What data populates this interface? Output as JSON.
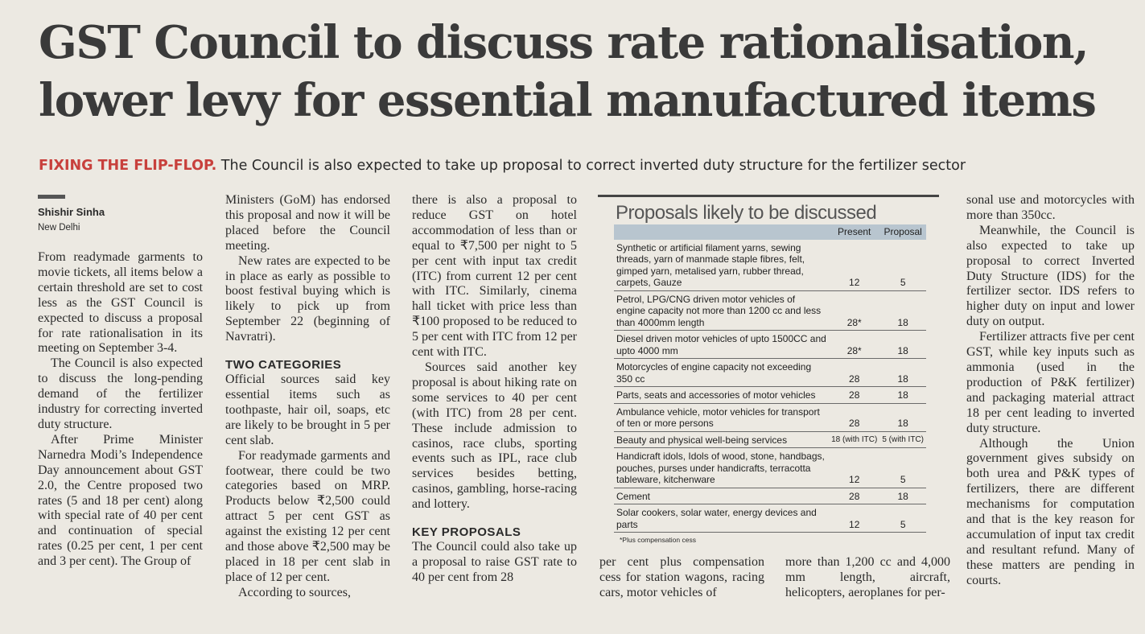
{
  "headline": {
    "line1": "GST Council to discuss rate rationalisation,",
    "line2": "lower levy for essential manufactured items"
  },
  "strap": {
    "kicker": "FIXING THE FLIP-FLOP.",
    "text": " The Council is also expected to take up proposal to correct inverted duty structure for the fertilizer sector"
  },
  "byline": {
    "name": "Shishir Sinha",
    "place": "New Delhi"
  },
  "col1": [
    "From readymade garments to movie tickets, all items below a certain threshold are set to cost less as the GST Council is expected to discuss a proposal for rate rationalisation in its meeting on September 3-4.",
    "The Council is also expected to discuss the long-pending demand of the fertilizer industry for correcting inverted duty structure.",
    "After Prime Minister Narnedra Modi’s Independence Day announcement about GST 2.0, the Centre proposed two rates (5 and 18 per cent) along with special rate of 40 per cent and continuation of special rates (0.25 per cent, 1 per cent and 3 per cent). The Group of"
  ],
  "col2": {
    "p1": "Ministers (GoM) has endorsed this proposal and now it will be placed before the Council meeting.",
    "p2": "New rates are expected to be in place as early as possible to boost festival buying which is likely to pick up from September 22 (beginning of Navratri).",
    "heading": "TWO CATEGORIES",
    "p3": "Official sources said key essential items such as toothpaste, hair oil, soaps, etc are likely to be brought in 5 per cent slab.",
    "p4": "For readymade garments and footwear, there could be two categories based on MRP. Products below ₹2,500 could attract 5 per cent GST as against the existing 12 per cent and those above ₹2,500 may be placed in 18 per cent slab in place of 12 per cent.",
    "p5": "According to sources,"
  },
  "col3": {
    "p1": "there is also a proposal to reduce GST on hotel accommodation of less than or equal to ₹7,500 per night to 5 per cent with input tax credit (ITC) from current 12 per cent with ITC. Similarly, cinema hall ticket with price less than ₹100 proposed to be reduced to 5 per cent with ITC from 12 per cent with ITC.",
    "p2": "Sources said another key proposal is about hiking rate on some services to 40 per cent (with ITC) from 28 per cent. These include admission to casinos, race clubs, sporting events such as IPL, race club services besides betting, casinos, gambling, horse-racing and lottery.",
    "heading": "KEY PROPOSALS",
    "p3": "The Council could also take up a proposal to raise GST rate to 40 per cent from 28"
  },
  "table": {
    "title": "Proposals likely to be discussed",
    "col_present": "Present",
    "col_proposal": "Proposal",
    "rows": [
      {
        "item": "Synthetic or artificial filament yarns, sewing threads, yarn of manmade staple fibres, felt, gimped yarn, metalised yarn, rubber thread, carpets, Gauze",
        "present": "12",
        "proposal": "5"
      },
      {
        "item": "Petrol, LPG/CNG driven motor vehicles of engine capacity not more than 1200 cc and less than 4000mm length",
        "present": "28*",
        "proposal": "18"
      },
      {
        "item": "Diesel driven motor vehicles of upto 1500CC and upto 4000 mm",
        "present": "28*",
        "proposal": "18"
      },
      {
        "item": "Motorcycles of engine capacity not exceeding 350 cc",
        "present": "28",
        "proposal": "18"
      },
      {
        "item": "Parts, seats and accessories of motor vehicles",
        "present": "28",
        "proposal": "18"
      },
      {
        "item": "Ambulance vehicle, motor vehicles for transport of ten or more persons",
        "present": "28",
        "proposal": "18"
      },
      {
        "item": "Beauty and physical well-being services",
        "present": "18 (with ITC)",
        "proposal": "5 (with ITC)"
      },
      {
        "item": "Handicraft idols, Idols of wood, stone, handbags, pouches, purses under handicrafts, terracotta tableware, kitchenware",
        "present": "12",
        "proposal": "5"
      },
      {
        "item": "Cement",
        "present": "28",
        "proposal": "18"
      },
      {
        "item": "Solar cookers, solar water, energy devices and parts",
        "present": "12",
        "proposal": "5"
      }
    ],
    "footnote": "*Plus compensation cess"
  },
  "col4_text": "per cent plus compensation cess for station wagons, racing cars, motor vehicles of",
  "col5_text": "more than 1,200 cc and 4,000 mm length, aircraft, helicopters, aeroplanes for per-",
  "col6": {
    "p1": "sonal use and motorcycles with more than 350cc.",
    "p2": "Meanwhile, the Council is also expected to take up proposal to correct Inverted Duty Structure (IDS) for the fertilizer sector. IDS refers to higher duty on input and lower duty on output.",
    "p3": "Fertilizer attracts five per cent GST, while key inputs such as ammonia (used in the production of P&K fertilizer) and packaging material attract 18 per cent leading to inverted duty structure.",
    "p4": "Although the Union government gives subsidy on both urea and P&K types of fertilizers, there are different mechanisms for computation and that is the key reason for accumulation of input tax credit and resultant refund. Many of these matters are pending in courts."
  }
}
